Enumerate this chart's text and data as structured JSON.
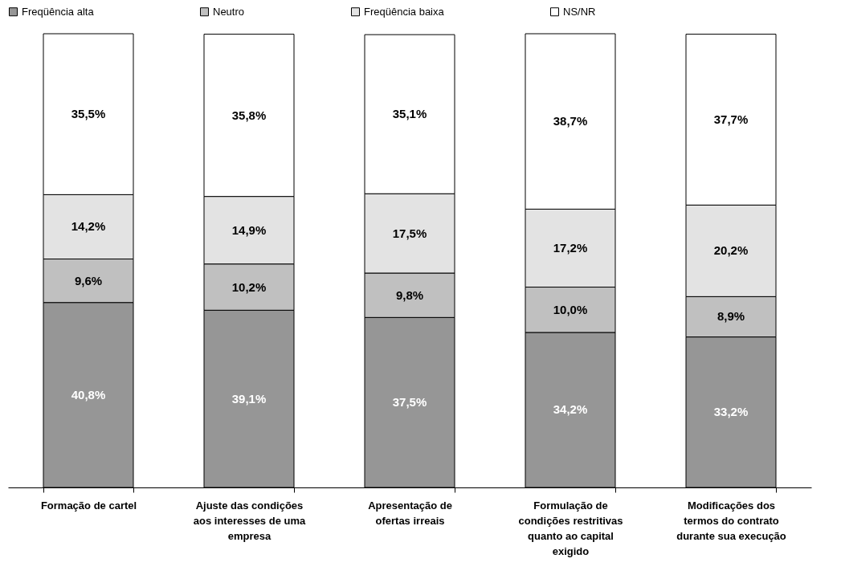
{
  "chart_data": {
    "type": "bar",
    "stacked": true,
    "legend": "top",
    "categories": [
      "Formação de cartel",
      "Ajuste das condições aos interesses de uma empresa",
      "Apresentação de ofertas irreais",
      "Formulação de condições restritivas quanto ao capital exigido",
      "Modificações dos termos do contrato durante sua execução"
    ],
    "series": [
      {
        "name": "Freqüência alta",
        "color": "#969696",
        "values": [
          40.8,
          39.1,
          37.5,
          34.2,
          33.2
        ],
        "value_labels": [
          "40,8%",
          "39,1%",
          "37,5%",
          "34,2%",
          "33,2%"
        ]
      },
      {
        "name": "Neutro",
        "color": "#c0c0c0",
        "values": [
          9.6,
          10.2,
          9.8,
          10.0,
          8.9
        ],
        "value_labels": [
          "9,6%",
          "10,2%",
          "9,8%",
          "10,0%",
          "8,9%"
        ]
      },
      {
        "name": "Freqüência baixa",
        "color": "#e3e3e3",
        "values": [
          14.2,
          14.9,
          17.5,
          17.2,
          20.2
        ],
        "value_labels": [
          "14,2%",
          "14,9%",
          "17,5%",
          "17,2%",
          "20,2%"
        ]
      },
      {
        "name": "NS/NR",
        "color": "#ffffff",
        "values": [
          35.5,
          35.8,
          35.1,
          38.7,
          37.7
        ],
        "value_labels": [
          "35,5%",
          "35,8%",
          "35,1%",
          "38,7%",
          "37,7%"
        ]
      }
    ]
  }
}
